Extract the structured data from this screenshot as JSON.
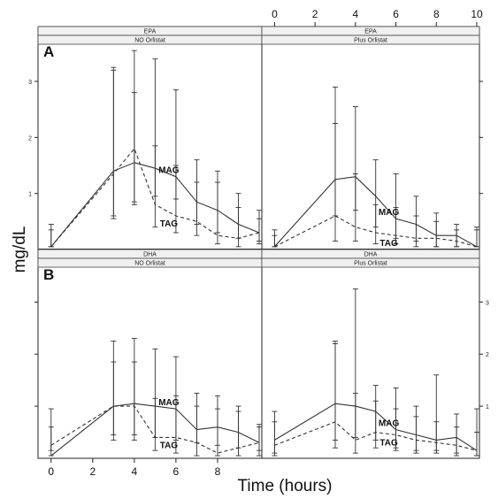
{
  "chart_data": {
    "type": "line",
    "xlabel": "Time (hours)",
    "ylabel": "mg/dL",
    "xlim": [
      -0.5,
      10
    ],
    "ylim": [
      0,
      3.6
    ],
    "x_ticks": [
      0,
      2,
      4,
      6,
      8,
      10
    ],
    "y_ticks": [
      1,
      2,
      3
    ],
    "grid": false,
    "panels": [
      {
        "id": "epa-no",
        "letter": "A",
        "strip_top": "EPA",
        "strip_bottom": "NO Orlistat",
        "series": [
          {
            "name": "MAG",
            "linestyle": "solid",
            "x": [
              0,
              3,
              4,
              5,
              6,
              7,
              8,
              9,
              10
            ],
            "y": [
              0.05,
              1.4,
              1.55,
              1.45,
              1.3,
              0.85,
              0.7,
              0.45,
              0.3
            ],
            "err_low": [
              0.45,
              0.6,
              0.85,
              0.95,
              0.9,
              0.45,
              0.3,
              0.2,
              0.15
            ],
            "err_high": [
              0.05,
              3.25,
              3.55,
              3.4,
              2.85,
              1.6,
              1.4,
              1.0,
              0.7
            ]
          },
          {
            "name": "TAG",
            "linestyle": "dashed",
            "x": [
              0,
              3,
              4,
              5,
              6,
              7,
              8,
              9,
              10
            ],
            "y": [
              0.05,
              1.35,
              1.8,
              0.8,
              0.6,
              0.5,
              0.25,
              0.2,
              0.3
            ],
            "err_low": [
              0.35,
              0.55,
              0.8,
              0.4,
              0.3,
              0.25,
              0.1,
              0.05,
              0.1
            ],
            "err_high": [
              0.05,
              3.2,
              2.8,
              1.85,
              1.5,
              1.2,
              1.2,
              0.75,
              0.55
            ]
          }
        ]
      },
      {
        "id": "epa-plus",
        "letter": "",
        "strip_top": "EPA",
        "strip_bottom": "Plus Orlistat",
        "series": [
          {
            "name": "MAG",
            "linestyle": "solid",
            "x": [
              0,
              3,
              4,
              5,
              6,
              7,
              8,
              9,
              10
            ],
            "y": [
              0.05,
              1.25,
              1.3,
              0.95,
              0.55,
              0.45,
              0.25,
              0.25,
              0.05
            ],
            "err_low": [
              0.35,
              0.6,
              0.7,
              0.4,
              0.2,
              0.15,
              0.05,
              0.05,
              0.05
            ],
            "err_high": [
              0.05,
              2.9,
              2.55,
              1.6,
              1.35,
              0.95,
              0.65,
              0.45,
              0.4
            ]
          },
          {
            "name": "TAG",
            "linestyle": "dashed",
            "x": [
              0,
              3,
              4,
              5,
              6,
              7,
              8,
              9,
              10
            ],
            "y": [
              0.05,
              0.6,
              0.4,
              0.3,
              0.25,
              0.2,
              0.2,
              0.15,
              0.05
            ],
            "err_low": [
              0.25,
              0.15,
              0.15,
              0.1,
              0.1,
              0.05,
              0.05,
              0.05,
              0.05
            ],
            "err_high": [
              0.05,
              2.25,
              1.35,
              0.8,
              0.75,
              0.6,
              0.5,
              0.35,
              0.35
            ]
          }
        ]
      },
      {
        "id": "dha-no",
        "letter": "B",
        "strip_top": "DHA",
        "strip_bottom": "NO Orlistat",
        "series": [
          {
            "name": "MAG",
            "linestyle": "solid",
            "x": [
              0,
              3,
              4,
              5,
              6,
              7,
              8,
              9,
              10
            ],
            "y": [
              0.05,
              1.0,
              1.05,
              1.0,
              0.95,
              0.55,
              0.6,
              0.5,
              0.3
            ],
            "err_low": [
              0.95,
              0.45,
              0.45,
              0.4,
              0.35,
              0.3,
              0.25,
              0.2,
              0.15
            ],
            "err_high": [
              0.05,
              2.25,
              2.3,
              2.1,
              1.95,
              1.25,
              1.2,
              1.0,
              0.65
            ]
          },
          {
            "name": "TAG",
            "linestyle": "dashed",
            "x": [
              0,
              3,
              4,
              5,
              6,
              7,
              8,
              9,
              10
            ],
            "y": [
              0.25,
              1.0,
              1.0,
              0.4,
              0.4,
              0.3,
              0.1,
              0.2,
              0.3
            ],
            "err_low": [
              0.15,
              0.35,
              0.35,
              0.15,
              0.1,
              0.05,
              0.05,
              0.05,
              0.05
            ],
            "err_high": [
              0.6,
              1.85,
              1.85,
              1.15,
              1.2,
              1.0,
              0.95,
              0.9,
              0.6
            ]
          }
        ]
      },
      {
        "id": "dha-plus",
        "letter": "",
        "strip_top": "DHA",
        "strip_bottom": "Plus Orlistat",
        "series": [
          {
            "name": "MAG",
            "linestyle": "solid",
            "x": [
              0,
              3,
              4,
              5,
              6,
              7,
              8,
              9,
              10
            ],
            "y": [
              0.35,
              1.05,
              1.0,
              0.9,
              0.55,
              0.45,
              0.35,
              0.4,
              0.15
            ],
            "err_low": [
              0.1,
              0.35,
              0.4,
              0.35,
              0.2,
              0.15,
              0.15,
              0.1,
              0.05
            ],
            "err_high": [
              0.9,
              2.25,
              3.25,
              1.4,
              1.35,
              1.0,
              1.6,
              0.85,
              0.95
            ]
          },
          {
            "name": "TAG",
            "linestyle": "dashed",
            "x": [
              0,
              3,
              4,
              5,
              6,
              7,
              8,
              9,
              10
            ],
            "y": [
              0.25,
              0.7,
              0.35,
              0.5,
              0.45,
              0.35,
              0.3,
              0.25,
              0.15
            ],
            "err_low": [
              0.05,
              0.2,
              0.1,
              0.2,
              0.15,
              0.1,
              0.1,
              0.05,
              0.05
            ],
            "err_high": [
              0.7,
              2.2,
              1.25,
              1.1,
              0.95,
              0.8,
              0.7,
              0.6,
              0.5
            ]
          }
        ]
      }
    ]
  }
}
